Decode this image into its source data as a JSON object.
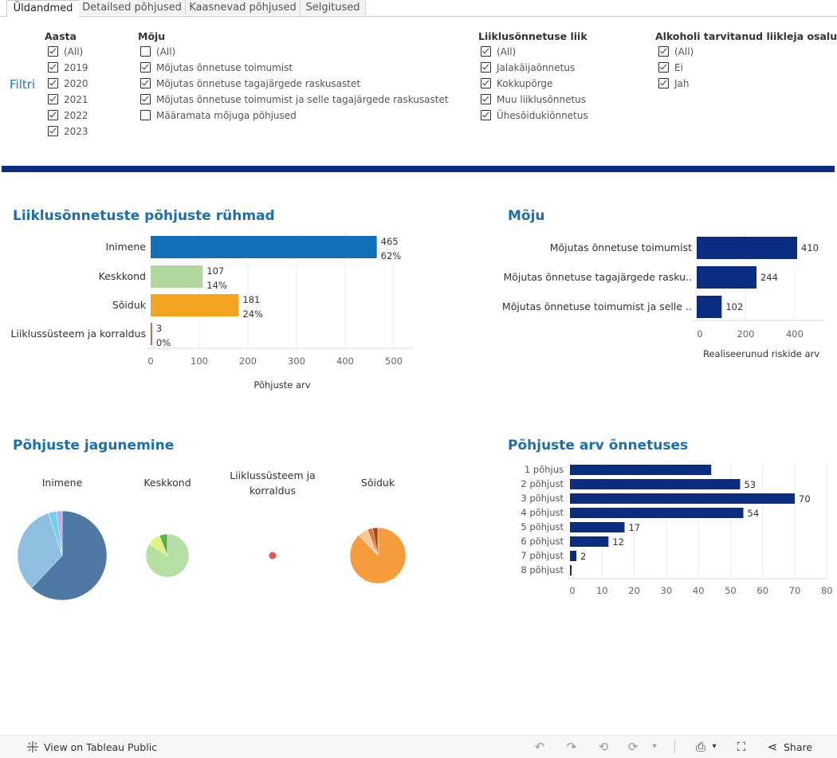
{
  "tabs": [
    {
      "label": "Üldandmed",
      "active": true
    },
    {
      "label": "Detailsed põhjused",
      "active": false
    },
    {
      "label": "Kaasnevad põhjused",
      "active": false
    },
    {
      "label": "Selgitused",
      "active": false
    }
  ],
  "filters": {
    "side_label": "Filtri",
    "aasta": {
      "title": "Aasta",
      "options": [
        {
          "label": "(All)",
          "checked": true
        },
        {
          "label": "2019",
          "checked": true
        },
        {
          "label": "2020",
          "checked": true
        },
        {
          "label": "2021",
          "checked": true
        },
        {
          "label": "2022",
          "checked": true
        },
        {
          "label": "2023",
          "checked": true
        }
      ]
    },
    "moju": {
      "title": "Mõju",
      "options": [
        {
          "label": "(All)",
          "checked": false
        },
        {
          "label": "Mõjutas õnnetuse toimumist",
          "checked": true
        },
        {
          "label": "Mõjutas õnnetuse tagajärgede raskusastet",
          "checked": true
        },
        {
          "label": "Mõjutas õnnetuse toimumist ja selle tagajärgede raskusastet",
          "checked": true
        },
        {
          "label": "Määramata mõjuga põhjused",
          "checked": false
        }
      ]
    },
    "liik": {
      "title": "Liiklusõnnetuse liik",
      "options": [
        {
          "label": "(All)",
          "checked": true
        },
        {
          "label": "Jalakäijaõnnetus",
          "checked": true
        },
        {
          "label": "Kokkupõrge",
          "checked": true
        },
        {
          "label": "Muu liiklusõnnetus",
          "checked": true
        },
        {
          "label": "Ühesõidukiõnnetus",
          "checked": true
        }
      ]
    },
    "alkohol": {
      "title": "Alkoholi tarvitanud liikleja osalusel",
      "options": [
        {
          "label": "(All)",
          "checked": true
        },
        {
          "label": "Ei",
          "checked": true
        },
        {
          "label": "Jah",
          "checked": true
        }
      ]
    }
  },
  "colors": {
    "accent_bar": "#0b2d81",
    "title": "#1a6fb4",
    "navy": "#0b2d81"
  },
  "charts": {
    "groups": {
      "title": "Liiklusõnnetuste põhjuste rühmad",
      "chart_data": {
        "type": "bar",
        "orientation": "horizontal",
        "categories": [
          "Inimene",
          "Keskkond",
          "Sõiduk",
          "Liiklussüsteem ja korraldus"
        ],
        "values": [
          465,
          107,
          181,
          3
        ],
        "percent_labels": [
          "62%",
          "14%",
          "24%",
          "0%"
        ],
        "colors": [
          "#1170b8",
          "#b1d79c",
          "#f3a421",
          "#c5593a"
        ],
        "xlabel": "Põhjuste arv",
        "xlim": [
          0,
          500
        ],
        "xticks": [
          0,
          100,
          200,
          300,
          400,
          500
        ]
      }
    },
    "impact": {
      "title": "Mõju",
      "chart_data": {
        "type": "bar",
        "orientation": "horizontal",
        "categories": [
          "Mõjutas õnnetuse toimumist",
          "Mõjutas õnnetuse tagajärgede rasku..",
          "Mõjutas õnnetuse toimumist ja selle .."
        ],
        "values": [
          410,
          244,
          102
        ],
        "color": "#0b2d81",
        "xlabel": "Realiseerunud riskide arv",
        "xlim": [
          0,
          450
        ],
        "xticks": [
          0,
          200,
          400
        ]
      }
    },
    "distribution": {
      "title": "Põhjuste jagunemine",
      "chart_data": [
        {
          "type": "pie",
          "label": "Inimene",
          "values": [
            62,
            33,
            3,
            2
          ],
          "colors": [
            "#4e79a7",
            "#8fbfe0",
            "#6dd1f0",
            "#c3a8e8"
          ]
        },
        {
          "type": "pie",
          "label": "Keskkond",
          "values": [
            84,
            10,
            6
          ],
          "colors": [
            "#b5e0a4",
            "#e2f27a",
            "#59b54a"
          ]
        },
        {
          "type": "pie",
          "label": "Liiklussüsteem ja korraldus",
          "values": [
            100
          ],
          "colors": [
            "#e15759"
          ]
        },
        {
          "type": "pie",
          "label": "Sõiduk",
          "values": [
            88,
            6,
            3,
            3
          ],
          "colors": [
            "#f59d3d",
            "#f8c79a",
            "#e0712b",
            "#b5401e"
          ]
        }
      ]
    },
    "count": {
      "title": "Põhjuste arv õnnetuses",
      "chart_data": {
        "type": "bar",
        "orientation": "horizontal",
        "categories": [
          "1 põhjus",
          "2 põhjust",
          "3 põhjust",
          "4 põhjust",
          "5 põhjust",
          "6 põhjust",
          "7 põhjust",
          "8 põhjust"
        ],
        "values": [
          44,
          53,
          70,
          54,
          17,
          12,
          2,
          0.4
        ],
        "labels": [
          "",
          "53",
          "70",
          "54",
          "17",
          "12",
          "2",
          ""
        ],
        "color": "#0b2d81",
        "xlim": [
          0,
          80
        ],
        "xticks": [
          0,
          10,
          20,
          30,
          40,
          50,
          60,
          70,
          80
        ]
      }
    }
  },
  "footer": {
    "view_label": "View on Tableau Public",
    "share_label": "Share"
  }
}
